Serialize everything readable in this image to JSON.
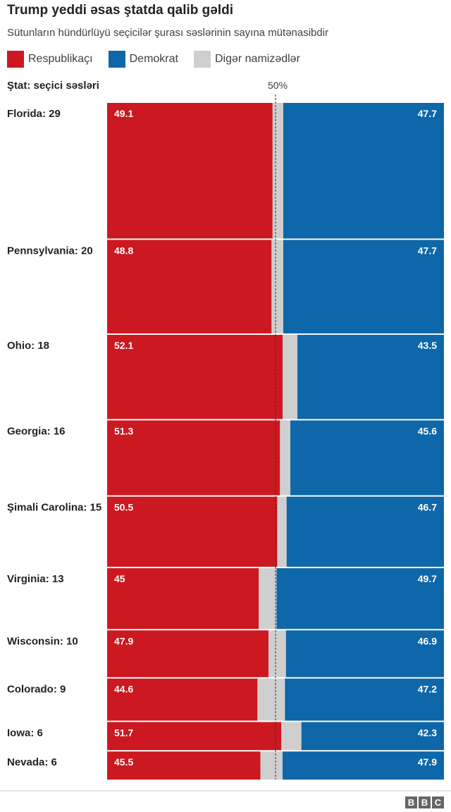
{
  "header": {
    "title": "Trump yeddi əsas ştatda qalib gəldi",
    "subtitle": "Sütunların hündürlüyü seçicilər şurası səslərinin sayına mütənasibdir"
  },
  "legend": [
    {
      "label": "Respublikaçı",
      "color": "#cc1820"
    },
    {
      "label": "Demokrat",
      "color": "#0e67a8"
    },
    {
      "label": "Digər namizədlər",
      "color": "#cfcfcf"
    }
  ],
  "chart_data": {
    "type": "bar",
    "title": "Trump yeddi əsas ştatda qalib gəldi",
    "subtitle": "Sütunların hündürlüyü seçicilər şurası səslərinin sayına mütənasibdir",
    "ylabel": "Ştat: seçici səsləri",
    "midline_label": "50%",
    "midline_value": 50,
    "xlim": [
      0,
      100
    ],
    "categories": [
      "Florida: 29",
      "Pennsylvania: 20",
      "Ohio: 18",
      "Georgia: 16",
      "Şimali Carolina: 15",
      "Virginia: 13",
      "Wisconsin: 10",
      "Colorado: 9",
      "Iowa: 6",
      "Nevada: 6"
    ],
    "electoral_votes": [
      29,
      20,
      18,
      16,
      15,
      13,
      10,
      9,
      6,
      6
    ],
    "series": [
      {
        "name": "Respublikaçı",
        "color": "#cc1820",
        "values": [
          49.1,
          48.8,
          52.1,
          51.3,
          50.5,
          45,
          47.9,
          44.6,
          51.7,
          45.5
        ]
      },
      {
        "name": "Demokrat",
        "color": "#0e67a8",
        "values": [
          47.7,
          47.7,
          43.5,
          45.6,
          46.7,
          49.7,
          46.9,
          47.2,
          42.3,
          47.9
        ]
      },
      {
        "name": "Digər namizədlər",
        "color": "#cfcfcf",
        "values": [
          3.2,
          3.5,
          4.4,
          3.1,
          2.8,
          5.3,
          5.2,
          8.2,
          6.0,
          6.6
        ]
      }
    ],
    "stacked": true,
    "orientation": "horizontal"
  },
  "footer": {
    "logo": [
      "B",
      "B",
      "C"
    ]
  }
}
